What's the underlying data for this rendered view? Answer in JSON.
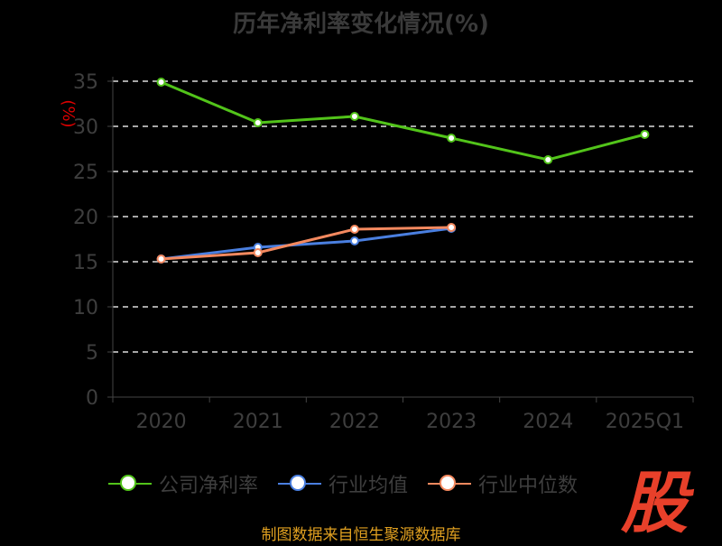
{
  "chart_data": {
    "type": "line",
    "title": "历年净利率变化情况(%)",
    "ylabel": "(%)",
    "xlabel": "",
    "ylim": [
      0,
      35
    ],
    "yticks": [
      0,
      5,
      10,
      15,
      20,
      25,
      30,
      35
    ],
    "categories": [
      "2020",
      "2021",
      "2022",
      "2023",
      "2024",
      "2025Q1"
    ],
    "grid": true,
    "legend_position": "bottom",
    "series": [
      {
        "name": "公司净利率",
        "color": "#52c41a",
        "values": [
          34.9,
          30.4,
          31.1,
          28.7,
          26.3,
          29.1
        ]
      },
      {
        "name": "行业均值",
        "color": "#4a7fe0",
        "values": [
          15.3,
          16.6,
          17.3,
          18.7,
          null,
          null
        ]
      },
      {
        "name": "行业中位数",
        "color": "#f4895f",
        "values": [
          15.3,
          16.0,
          18.6,
          18.8,
          null,
          null
        ]
      }
    ]
  },
  "logo_text": "股",
  "source": "制图数据来自恒生聚源数据库"
}
